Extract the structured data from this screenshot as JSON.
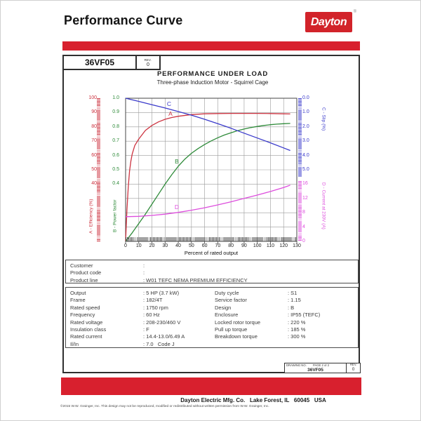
{
  "header": {
    "title": "Performance Curve",
    "logo_text": "Dayton",
    "registered_mark": "®"
  },
  "title_block": {
    "model": "36VF05",
    "rev_label": "REV.",
    "rev_value": "0"
  },
  "colors": {
    "bar_red": "#D8202E",
    "logo_red": "#D2232A",
    "efficiency_red": "#CC3340",
    "power_factor_green": "#2F8B3A",
    "slip_blue": "#3A3ACB",
    "current_magenta": "#DD4DDD",
    "grid_gray": "#9A9A9A",
    "axis_dark": "#444444"
  },
  "chart_data": {
    "type": "line",
    "title": "PERFORMANCE UNDER LOAD",
    "subtitle": "Three-phase Induction Motor - Squirrel Cage",
    "xlabel": "Percent of rated output",
    "xlim": [
      0,
      130
    ],
    "grid": true,
    "x_ticks": [
      "0",
      "10",
      "20",
      "30",
      "40",
      "50",
      "60",
      "70",
      "80",
      "90",
      "100",
      "110",
      "120",
      "130"
    ],
    "axes": [
      {
        "id": "efficiency",
        "label": "A - Efficiency (%)",
        "color": "#CC3340",
        "side": "left",
        "ticks": [
          "100",
          "90",
          "80",
          "70",
          "60",
          "50",
          "40"
        ],
        "range": [
          0,
          100
        ]
      },
      {
        "id": "power_factor",
        "label": "B - Power factor",
        "color": "#2F8B3A",
        "side": "left",
        "ticks": [
          "1.0",
          "0.9",
          "0.8",
          "0.7",
          "0.6",
          "0.5",
          "0.4"
        ],
        "range": [
          0,
          1
        ]
      },
      {
        "id": "slip",
        "label": "C - Slip (%)",
        "color": "#3A3ACB",
        "side": "right",
        "ticks": [
          "0.0",
          "1.0",
          "2.0",
          "3.0",
          "4.0",
          "5.0"
        ],
        "range": [
          0,
          5
        ],
        "inverted": true
      },
      {
        "id": "current",
        "label": "D - Current at 230V (A)",
        "color": "#DD4DDD",
        "side": "right",
        "ticks": [
          "16",
          "12",
          "8",
          "4",
          "0"
        ],
        "range": [
          0,
          16
        ]
      }
    ],
    "series": [
      {
        "name": "A",
        "axis": "efficiency",
        "x": [
          0,
          1,
          2,
          3,
          4,
          5,
          7,
          10,
          15,
          20,
          25,
          30,
          35,
          40,
          50,
          60,
          70,
          80,
          90,
          100,
          110,
          120,
          125
        ],
        "values": [
          0,
          22,
          38,
          49,
          56,
          61,
          67,
          71.5,
          77.5,
          81,
          83.5,
          85.3,
          86.5,
          87.4,
          88.6,
          89.1,
          89.3,
          89.4,
          89.4,
          89.4,
          89.3,
          89.1,
          89
        ]
      },
      {
        "name": "B",
        "axis": "power_factor",
        "x": [
          0,
          5,
          10,
          15,
          20,
          25,
          30,
          35,
          40,
          45,
          50,
          55,
          60,
          65,
          70,
          75,
          80,
          85,
          90,
          95,
          100,
          105,
          110,
          115,
          120,
          125
        ],
        "values": [
          0,
          0.06,
          0.125,
          0.19,
          0.26,
          0.33,
          0.4,
          0.465,
          0.525,
          0.575,
          0.615,
          0.648,
          0.677,
          0.702,
          0.724,
          0.743,
          0.759,
          0.773,
          0.785,
          0.795,
          0.803,
          0.81,
          0.815,
          0.819,
          0.822,
          0.824
        ]
      },
      {
        "name": "C",
        "axis": "slip",
        "x": [
          0,
          10,
          20,
          30,
          40,
          50,
          60,
          70,
          80,
          90,
          100,
          110,
          120,
          125
        ],
        "values": [
          0,
          0.22,
          0.45,
          0.68,
          0.93,
          1.18,
          1.47,
          1.78,
          2.1,
          2.44,
          2.78,
          3.12,
          3.47,
          3.65
        ]
      },
      {
        "name": "D",
        "axis": "current",
        "x": [
          0,
          10,
          20,
          30,
          40,
          50,
          60,
          70,
          80,
          90,
          100,
          110,
          120,
          125
        ],
        "values": [
          6.9,
          7.0,
          7.25,
          7.6,
          8.1,
          8.7,
          9.4,
          10.2,
          11.05,
          12.0,
          12.95,
          13.95,
          15.05,
          15.7
        ]
      }
    ]
  },
  "format": {
    "colon": ": "
  },
  "info_box": {
    "rows": [
      {
        "label": "Customer",
        "value": ""
      },
      {
        "label": "Product code",
        "value": ""
      },
      {
        "label": "Product line",
        "value": "W01 TEFC NEMA PREMIUM EFFICIENCY"
      }
    ]
  },
  "specs": {
    "left": [
      {
        "label": "Output",
        "value": "5 HP (3.7 kW)"
      },
      {
        "label": "Frame",
        "value": "182/4T"
      },
      {
        "label": "Rated speed",
        "value": "1750 rpm"
      },
      {
        "label": "Frequency",
        "value": "60 Hz"
      },
      {
        "label": "Rated voltage",
        "value": "208-230/460 V"
      },
      {
        "label": "Insulation class",
        "value": "F"
      },
      {
        "label": "Rated current",
        "value": "14.4-13.0/6.49 A"
      },
      {
        "label": "Il/In",
        "value": "7.0   Code J"
      }
    ],
    "right": [
      {
        "label": "Duty cycle",
        "value": "S1"
      },
      {
        "label": "Service factor",
        "value": "1.15"
      },
      {
        "label": "Design",
        "value": "B"
      },
      {
        "label": "Enclosure",
        "value": "IP55 (TEFC)"
      },
      {
        "label": "Locked rotor torque",
        "value": "220 %"
      },
      {
        "label": "Pull up torque",
        "value": "185 %"
      },
      {
        "label": "Breakdown torque",
        "value": "300 %"
      }
    ]
  },
  "drawing_box": {
    "drawing_no_label": "DRAWING NO.",
    "page_label": "PAGE 2 of 2",
    "drawing_no": "36VF05",
    "rev_label": "REV.",
    "rev_value": "0"
  },
  "footer": {
    "company_line": "Dayton Electric Mfg. Co.   Lake Forest, IL   60045   USA",
    "copyright": "©2015 W.W. Grainger, Inc.    This design may not be reproduced, modified or redistributed without written permission from W.W. Grainger, Inc."
  }
}
